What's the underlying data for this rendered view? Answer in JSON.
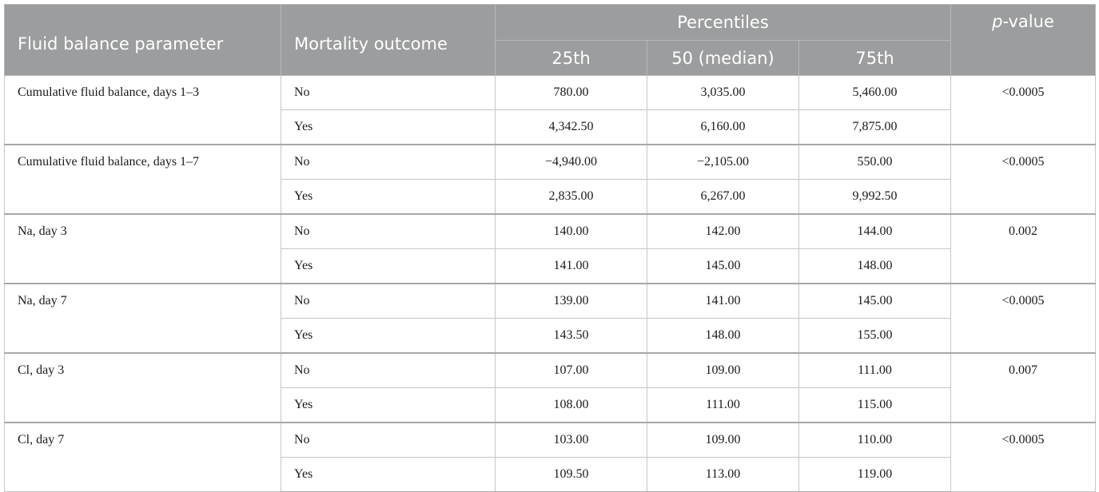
{
  "table": {
    "header": {
      "parameter": "Fluid balance parameter",
      "outcome": "Mortality outcome",
      "percentiles": "Percentiles",
      "p_value_italic": "p",
      "p_value_rest": "-value",
      "p25": "25th",
      "p50": "50 (median)",
      "p75": "75th"
    },
    "groups": [
      {
        "parameter": "Cumulative fluid balance, days 1–3",
        "p_value": "<0.0005",
        "rows": [
          {
            "outcome": "No",
            "p25": "780.00",
            "p50": "3,035.00",
            "p75": "5,460.00"
          },
          {
            "outcome": "Yes",
            "p25": "4,342.50",
            "p50": "6,160.00",
            "p75": "7,875.00"
          }
        ]
      },
      {
        "parameter": "Cumulative fluid balance, days 1–7",
        "p_value": "<0.0005",
        "rows": [
          {
            "outcome": "No",
            "p25": "−4,940.00",
            "p50": "−2,105.00",
            "p75": "550.00"
          },
          {
            "outcome": "Yes",
            "p25": "2,835.00",
            "p50": "6,267.00",
            "p75": "9,992.50"
          }
        ]
      },
      {
        "parameter": "Na, day 3",
        "p_value": "0.002",
        "rows": [
          {
            "outcome": "No",
            "p25": "140.00",
            "p50": "142.00",
            "p75": "144.00"
          },
          {
            "outcome": "Yes",
            "p25": "141.00",
            "p50": "145.00",
            "p75": "148.00"
          }
        ]
      },
      {
        "parameter": "Na, day 7",
        "p_value": "<0.0005",
        "rows": [
          {
            "outcome": "No",
            "p25": "139.00",
            "p50": "141.00",
            "p75": "145.00"
          },
          {
            "outcome": "Yes",
            "p25": "143.50",
            "p50": "148.00",
            "p75": "155.00"
          }
        ]
      },
      {
        "parameter": "Cl, day 3",
        "p_value": "0.007",
        "rows": [
          {
            "outcome": "No",
            "p25": "107.00",
            "p50": "109.00",
            "p75": "111.00"
          },
          {
            "outcome": "Yes",
            "p25": "108.00",
            "p50": "111.00",
            "p75": "115.00"
          }
        ]
      },
      {
        "parameter": "Cl, day 7",
        "p_value": "<0.0005",
        "rows": [
          {
            "outcome": "No",
            "p25": "103.00",
            "p50": "109.00",
            "p75": "110.00"
          },
          {
            "outcome": "Yes",
            "p25": "109.50",
            "p50": "113.00",
            "p75": "119.00"
          }
        ]
      }
    ]
  }
}
